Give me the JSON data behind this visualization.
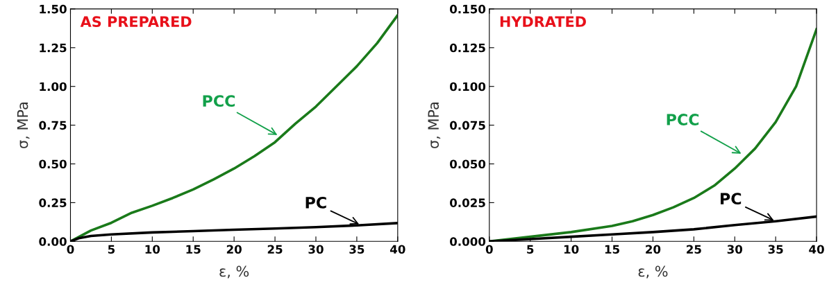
{
  "chart_data": [
    {
      "type": "line",
      "title": "AS PREPARED",
      "xlabel": "ε, %",
      "ylabel": "σ, MPa",
      "xlim": [
        0,
        40
      ],
      "xticks": [
        0,
        5,
        10,
        15,
        20,
        25,
        30,
        35,
        40
      ],
      "ylim": [
        0,
        1.5
      ],
      "yticks": [
        {
          "value": 0,
          "label": "0.00"
        },
        {
          "value": 0.25,
          "label": "0.25"
        },
        {
          "value": 0.5,
          "label": "0.50"
        },
        {
          "value": 0.75,
          "label": "0.75"
        },
        {
          "value": 1.0,
          "label": "1.00"
        },
        {
          "value": 1.25,
          "label": "1.25"
        },
        {
          "value": 1.5,
          "label": "1.50"
        }
      ],
      "series": [
        {
          "color": "#1a7a1a",
          "x": [
            0,
            2.5,
            5,
            7.5,
            10,
            12.5,
            15,
            17.5,
            20,
            22.5,
            25,
            27.5,
            30,
            32.5,
            35,
            37.5,
            40
          ],
          "values": [
            0,
            0.07,
            0.12,
            0.185,
            0.23,
            0.28,
            0.335,
            0.4,
            0.47,
            0.55,
            0.64,
            0.76,
            0.87,
            1.0,
            1.13,
            1.28,
            1.46
          ]
        },
        {
          "color": "#000000",
          "x": [
            0,
            1,
            2.5,
            5,
            10,
            15,
            20,
            25,
            30,
            35,
            40
          ],
          "values": [
            0,
            0.02,
            0.035,
            0.045,
            0.058,
            0.066,
            0.075,
            0.083,
            0.092,
            0.103,
            0.118
          ]
        }
      ],
      "annotations": [
        {
          "text": "PCC",
          "x": 25.5,
          "y": 0.68
        },
        {
          "text": "PC",
          "x": 35.5,
          "y": 0.105
        }
      ],
      "grid": false
    },
    {
      "type": "line",
      "title": "HYDRATED",
      "xlabel": "ε, %",
      "ylabel": "σ, MPa",
      "xlim": [
        0,
        40
      ],
      "xticks": [
        0,
        5,
        10,
        15,
        20,
        25,
        30,
        35,
        40
      ],
      "ylim": [
        0,
        0.15
      ],
      "yticks": [
        {
          "value": 0,
          "label": "0.000"
        },
        {
          "value": 0.025,
          "label": "0.025"
        },
        {
          "value": 0.05,
          "label": "0.050"
        },
        {
          "value": 0.075,
          "label": "0.075"
        },
        {
          "value": 0.1,
          "label": "0.100"
        },
        {
          "value": 0.125,
          "label": "0.125"
        },
        {
          "value": 0.15,
          "label": "0.150"
        }
      ],
      "series": [
        {
          "color": "#1a7a1a",
          "x": [
            0,
            5,
            10,
            15,
            17.5,
            20,
            22.5,
            25,
            27.5,
            30,
            32.5,
            35,
            37.5,
            40
          ],
          "values": [
            0,
            0.003,
            0.006,
            0.01,
            0.013,
            0.017,
            0.022,
            0.028,
            0.036,
            0.047,
            0.06,
            0.077,
            0.1,
            0.137
          ]
        },
        {
          "color": "#000000",
          "x": [
            0,
            5,
            10,
            15,
            20,
            25,
            30,
            35,
            40
          ],
          "values": [
            0,
            0.0015,
            0.003,
            0.0045,
            0.006,
            0.0078,
            0.0105,
            0.013,
            0.016
          ]
        }
      ],
      "annotations": [
        {
          "text": "PCC",
          "x": 31,
          "y": 0.056
        },
        {
          "text": "PC",
          "x": 35,
          "y": 0.013
        }
      ],
      "grid": false
    }
  ]
}
